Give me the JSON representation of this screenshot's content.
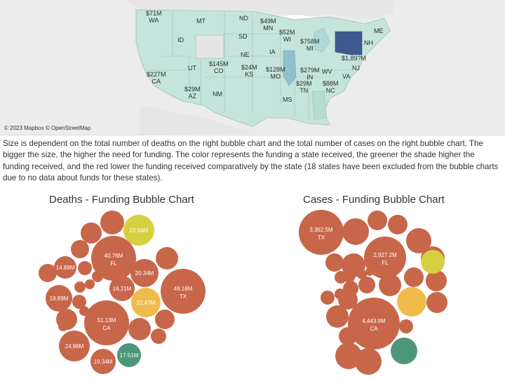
{
  "map": {
    "attribution": "© 2023 Mapbox © OpenStreetMap",
    "labels": [
      {
        "name": "map-label-wa",
        "text": "$71M\nWA"
      },
      {
        "name": "map-label-mt",
        "text": "MT"
      },
      {
        "name": "map-label-nd",
        "text": "ND"
      },
      {
        "name": "map-label-mn",
        "text": "$49M\nMN"
      },
      {
        "name": "map-label-wi",
        "text": "$52M\nWI"
      },
      {
        "name": "map-label-me",
        "text": "ME"
      },
      {
        "name": "map-label-id",
        "text": "ID"
      },
      {
        "name": "map-label-sd",
        "text": "SD"
      },
      {
        "name": "map-label-mi",
        "text": "$758M\nMI"
      },
      {
        "name": "map-label-nh",
        "text": "NH"
      },
      {
        "name": "map-label-ny",
        "text": "$1,89?M"
      },
      {
        "name": "map-label-ne",
        "text": "NE"
      },
      {
        "name": "map-label-ia",
        "text": "IA"
      },
      {
        "name": "map-label-nj",
        "text": "NJ"
      },
      {
        "name": "map-label-ca",
        "text": "$227M\nCA"
      },
      {
        "name": "map-label-ut",
        "text": "UT"
      },
      {
        "name": "map-label-co",
        "text": "$145M\nCO"
      },
      {
        "name": "map-label-ks",
        "text": "$24M\nKS"
      },
      {
        "name": "map-label-mo",
        "text": "$128M\nMO"
      },
      {
        "name": "map-label-in",
        "text": "$279M\nIN"
      },
      {
        "name": "map-label-wv",
        "text": "WV"
      },
      {
        "name": "map-label-va",
        "text": "VA"
      },
      {
        "name": "map-label-az",
        "text": "$29M\nAZ"
      },
      {
        "name": "map-label-tn",
        "text": "$29M\nTN"
      },
      {
        "name": "map-label-nc",
        "text": "$88M\nNC"
      },
      {
        "name": "map-label-nm",
        "text": "NM"
      },
      {
        "name": "map-label-ms",
        "text": "MS"
      }
    ]
  },
  "description": "Size is dependent on the total number of deaths on the right bubble chart and the total number of cases on the right bubble chart. The bigger the size, the higher the need for funding. The color represents the funding a state received, the greener the shade higher the funding received, and the red lower the funding received comparatively by the state (18 states have been excluded from the bubble charts due to no data about funds for these states).",
  "colors": {
    "red": "#c8664a",
    "yellow": "#d6cf40",
    "orange": "#f0bb4c",
    "green": "#4d9679",
    "map_land": "#c5e5dc",
    "map_dark": "#3c5a8f",
    "map_mid": "#8ec0d0",
    "map_gray": "#e4e4e4"
  },
  "deaths_chart": {
    "title": "Deaths - Funding Bubble Chart",
    "bubbles": [
      {
        "label": "22.94M",
        "state": "",
        "color": "yellow"
      },
      {
        "label": "40.76M",
        "state": "FL",
        "color": "red"
      },
      {
        "label": "14.89M",
        "state": "",
        "color": "red"
      },
      {
        "label": "20.34M",
        "state": "",
        "color": "red"
      },
      {
        "label": "48.16M",
        "state": "TX",
        "color": "red"
      },
      {
        "label": "16.21M",
        "state": "",
        "color": "red"
      },
      {
        "label": "22.47M",
        "state": "",
        "color": "orange"
      },
      {
        "label": "19.89M",
        "state": "",
        "color": "red"
      },
      {
        "label": "51.13M",
        "state": "CA",
        "color": "red"
      },
      {
        "label": "24.96M",
        "state": "",
        "color": "red"
      },
      {
        "label": "17.51M",
        "state": "",
        "color": "green"
      },
      {
        "label": "19.34M",
        "state": "",
        "color": "red"
      }
    ]
  },
  "cases_chart": {
    "title": "Cases - Funding Bubble Chart",
    "bubbles": [
      {
        "label": "3,362.5M",
        "state": "TX",
        "color": "red"
      },
      {
        "label": "2,927.2M",
        "state": "FL",
        "color": "red"
      },
      {
        "label": "4,443.9M",
        "state": "CA",
        "color": "red"
      }
    ]
  }
}
